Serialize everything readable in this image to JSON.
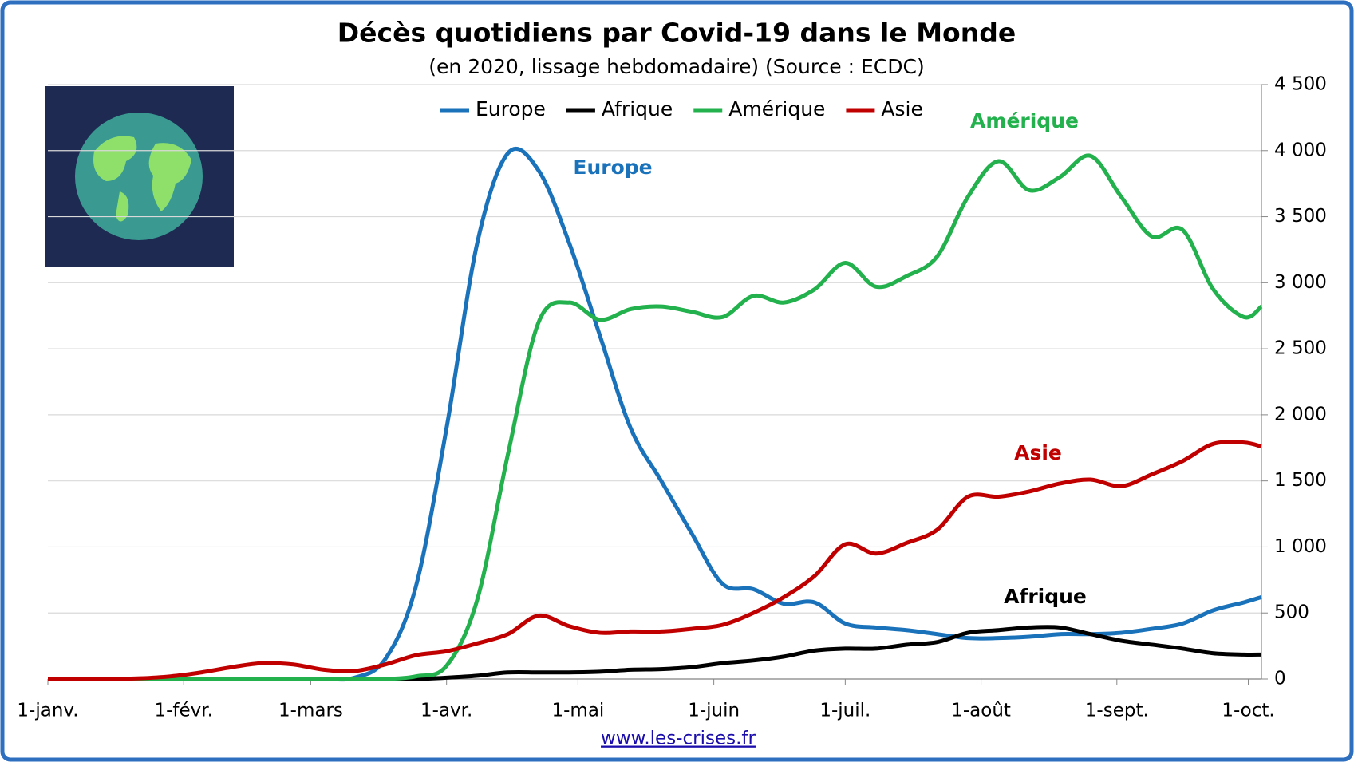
{
  "chart_data": {
    "type": "line",
    "title": "Décès quotidiens par Covid-19 dans le Monde",
    "subtitle": "(en 2020, lissage hebdomadaire) (Source : ECDC)",
    "source": "www.les-crises.fr",
    "legend": "top",
    "grid": true,
    "x": [
      0,
      7,
      14,
      21,
      28,
      35,
      42,
      49,
      56,
      63,
      70,
      77,
      84,
      91,
      98,
      105,
      112,
      119,
      126,
      133,
      140,
      147,
      154,
      161,
      168,
      175,
      182,
      189,
      196,
      203,
      210,
      217,
      224,
      231,
      238,
      245,
      252,
      259,
      266,
      273,
      277
    ],
    "xlim": [
      0,
      277
    ],
    "xticks": [
      {
        "value": 0,
        "label": "1-janv."
      },
      {
        "value": 31,
        "label": "1-févr."
      },
      {
        "value": 60,
        "label": "1-mars"
      },
      {
        "value": 91,
        "label": "1-avr."
      },
      {
        "value": 121,
        "label": "1-mai"
      },
      {
        "value": 152,
        "label": "1-juin"
      },
      {
        "value": 182,
        "label": "1-juil."
      },
      {
        "value": 213,
        "label": "1-août"
      },
      {
        "value": 244,
        "label": "1-sept."
      },
      {
        "value": 274,
        "label": "1-oct."
      }
    ],
    "ylim": [
      0,
      4500
    ],
    "yticks": [
      0,
      500,
      {
        "value": 1000,
        "label": "1 000"
      },
      {
        "value": 1500,
        "label": "1 500"
      },
      {
        "value": 2000,
        "label": "2 000"
      },
      {
        "value": 2500,
        "label": "2 500"
      },
      {
        "value": 3000,
        "label": "3 000"
      },
      {
        "value": 3500,
        "label": "3 500"
      },
      {
        "value": 4000,
        "label": "4 000"
      },
      {
        "value": 4500,
        "label": "4 500"
      }
    ],
    "series": [
      {
        "name": "Europe",
        "color": "#1a72bb",
        "annotation": "Europe",
        "values": [
          0,
          0,
          0,
          0,
          0,
          0,
          0,
          0,
          0,
          0,
          10,
          150,
          700,
          1900,
          3300,
          3980,
          3850,
          3300,
          2600,
          1900,
          1500,
          1100,
          720,
          680,
          570,
          580,
          420,
          390,
          370,
          340,
          310,
          310,
          320,
          340,
          340,
          350,
          380,
          420,
          520,
          580,
          620
        ]
      },
      {
        "name": "Afrique",
        "color": "#000000",
        "annotation": "Afrique",
        "values": [
          0,
          0,
          0,
          0,
          0,
          0,
          0,
          0,
          0,
          0,
          0,
          0,
          0,
          10,
          25,
          50,
          50,
          50,
          55,
          70,
          75,
          90,
          120,
          140,
          170,
          215,
          230,
          230,
          260,
          280,
          350,
          370,
          390,
          390,
          340,
          290,
          260,
          230,
          195,
          185,
          185
        ]
      },
      {
        "name": "Amérique",
        "color": "#22b14c",
        "annotation": "Amérique",
        "values": [
          0,
          0,
          0,
          0,
          0,
          0,
          0,
          0,
          0,
          0,
          0,
          0,
          20,
          100,
          600,
          1700,
          2700,
          2850,
          2720,
          2800,
          2820,
          2780,
          2740,
          2900,
          2850,
          2950,
          3150,
          2970,
          3050,
          3200,
          3650,
          3920,
          3700,
          3800,
          3960,
          3650,
          3350,
          3400,
          2950,
          2740,
          2820
        ]
      },
      {
        "name": "Asie",
        "color": "#c00000",
        "annotation": "Asie",
        "values": [
          0,
          0,
          0,
          5,
          20,
          50,
          90,
          120,
          110,
          70,
          60,
          110,
          180,
          210,
          270,
          340,
          480,
          400,
          350,
          360,
          360,
          380,
          410,
          500,
          620,
          780,
          1020,
          950,
          1030,
          1130,
          1380,
          1380,
          1420,
          1480,
          1510,
          1460,
          1550,
          1650,
          1780,
          1790,
          1760
        ]
      }
    ]
  }
}
